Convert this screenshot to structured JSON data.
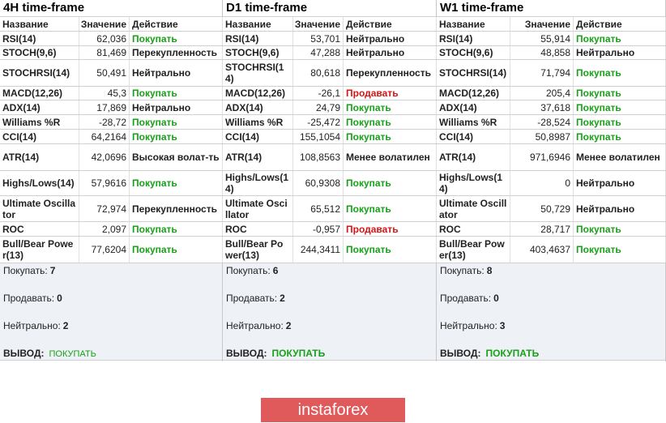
{
  "header": {
    "columns": [
      "Название",
      "Значение",
      "Действие"
    ]
  },
  "panels": [
    {
      "title": "4H time-frame",
      "rows": [
        {
          "name": "RSI(14)",
          "value": "62,036",
          "action": "Покупать",
          "color": "#19a019"
        },
        {
          "name": "STOCH(9,6)",
          "value": "81,469",
          "action": "Перекупленность",
          "color": "#222222"
        },
        {
          "name": "STOCHRSI(14)",
          "value": "50,491",
          "action": "Нейтрально",
          "color": "#222222"
        },
        {
          "name": "MACD(12,26)",
          "value": "45,3",
          "action": "Покупать",
          "color": "#19a019"
        },
        {
          "name": "ADX(14)",
          "value": "17,869",
          "action": "Нейтрально",
          "color": "#222222"
        },
        {
          "name": "Williams %R",
          "value": "-28,72",
          "action": "Покупать",
          "color": "#19a019"
        },
        {
          "name": "CCI(14)",
          "value": "64,2164",
          "action": "Покупать",
          "color": "#19a019"
        },
        {
          "name": "ATR(14)",
          "value": "42,0696",
          "action": "Высокая волат-ть",
          "color": "#222222"
        },
        {
          "name": "Highs/Lows(14)",
          "value": "57,9616",
          "action": "Покупать",
          "color": "#19a019"
        },
        {
          "name": "Ultimate Oscillator",
          "value": "72,974",
          "action": "Перекупленность",
          "color": "#222222"
        },
        {
          "name": "ROC",
          "value": "2,097",
          "action": "Покупать",
          "color": "#19a019"
        },
        {
          "name": "Bull/Bear Power(13)",
          "value": "77,6204",
          "action": "Покупать",
          "color": "#19a019"
        }
      ],
      "summary": {
        "buy_label": "Покупать:",
        "buy": 7,
        "sell_label": "Продавать:",
        "sell": 0,
        "neutral_label": "Нейтрально:",
        "neutral": 2,
        "conclusion_label": "ВЫВОД:",
        "conclusion": "ПОКУПАТЬ"
      }
    },
    {
      "title": "D1 time-frame",
      "rows": [
        {
          "name": "RSI(14)",
          "value": "53,701",
          "action": "Нейтрально",
          "color": "#222222"
        },
        {
          "name": "STOCH(9,6)",
          "value": "47,288",
          "action": "Нейтрально",
          "color": "#222222"
        },
        {
          "name": "STOCHRSI(14)",
          "value": "80,618",
          "action": "Перекупленность",
          "color": "#222222"
        },
        {
          "name": "MACD(12,26)",
          "value": "-26,1",
          "action": "Продавать",
          "color": "#d81414"
        },
        {
          "name": "ADX(14)",
          "value": "24,79",
          "action": "Покупать",
          "color": "#19a019"
        },
        {
          "name": "Williams %R",
          "value": "-25,472",
          "action": "Покупать",
          "color": "#19a019"
        },
        {
          "name": "CCI(14)",
          "value": "155,1054",
          "action": "Покупать",
          "color": "#19a019"
        },
        {
          "name": "ATR(14)",
          "value": "108,8563",
          "action": "Менее волатилен",
          "color": "#222222"
        },
        {
          "name": "Highs/Lows(14)",
          "value": "60,9308",
          "action": "Покупать",
          "color": "#19a019"
        },
        {
          "name": "Ultimate Oscillator",
          "value": "65,512",
          "action": "Покупать",
          "color": "#19a019"
        },
        {
          "name": "ROC",
          "value": "-0,957",
          "action": "Продавать",
          "color": "#d81414"
        },
        {
          "name": "Bull/Bear Power(13)",
          "value": "244,3411",
          "action": "Покупать",
          "color": "#19a019"
        }
      ],
      "summary": {
        "buy_label": "Покупать:",
        "buy": 6,
        "sell_label": "Продавать:",
        "sell": 2,
        "neutral_label": "Нейтрально:",
        "neutral": 2,
        "conclusion_label": "ВЫВОД:",
        "conclusion": "ПОКУПАТЬ"
      }
    },
    {
      "title": "W1 time-frame",
      "rows": [
        {
          "name": "RSI(14)",
          "value": "55,914",
          "action": "Покупать",
          "color": "#19a019"
        },
        {
          "name": "STOCH(9,6)",
          "value": "48,858",
          "action": "Нейтрально",
          "color": "#222222"
        },
        {
          "name": "STOCHRSI(14)",
          "value": "71,794",
          "action": "Покупать",
          "color": "#19a019"
        },
        {
          "name": "MACD(12,26)",
          "value": "205,4",
          "action": "Покупать",
          "color": "#19a019"
        },
        {
          "name": "ADX(14)",
          "value": "37,618",
          "action": "Покупать",
          "color": "#19a019"
        },
        {
          "name": "Williams %R",
          "value": "-28,524",
          "action": "Покупать",
          "color": "#19a019"
        },
        {
          "name": "CCI(14)",
          "value": "50,8987",
          "action": "Покупать",
          "color": "#19a019"
        },
        {
          "name": "ATR(14)",
          "value": "971,6946",
          "action": "Менее волатилен",
          "color": "#222222"
        },
        {
          "name": "Highs/Lows(14)",
          "value": "0",
          "action": "Нейтрально",
          "color": "#222222"
        },
        {
          "name": "Ultimate Oscillator",
          "value": "50,729",
          "action": "Нейтрально",
          "color": "#222222"
        },
        {
          "name": "ROC",
          "value": "28,717",
          "action": "Покупать",
          "color": "#19a019"
        },
        {
          "name": "Bull/Bear Power(13)",
          "value": "403,4637",
          "action": "Покупать",
          "color": "#19a019"
        }
      ],
      "summary": {
        "buy_label": "Покупать:",
        "buy": 8,
        "sell_label": "Продавать:",
        "sell": 0,
        "neutral_label": "Нейтрально:",
        "neutral": 3,
        "conclusion_label": "ВЫВОД:",
        "conclusion": "ПОКУПАТЬ"
      }
    }
  ],
  "logo": {
    "text": "instaforex"
  }
}
